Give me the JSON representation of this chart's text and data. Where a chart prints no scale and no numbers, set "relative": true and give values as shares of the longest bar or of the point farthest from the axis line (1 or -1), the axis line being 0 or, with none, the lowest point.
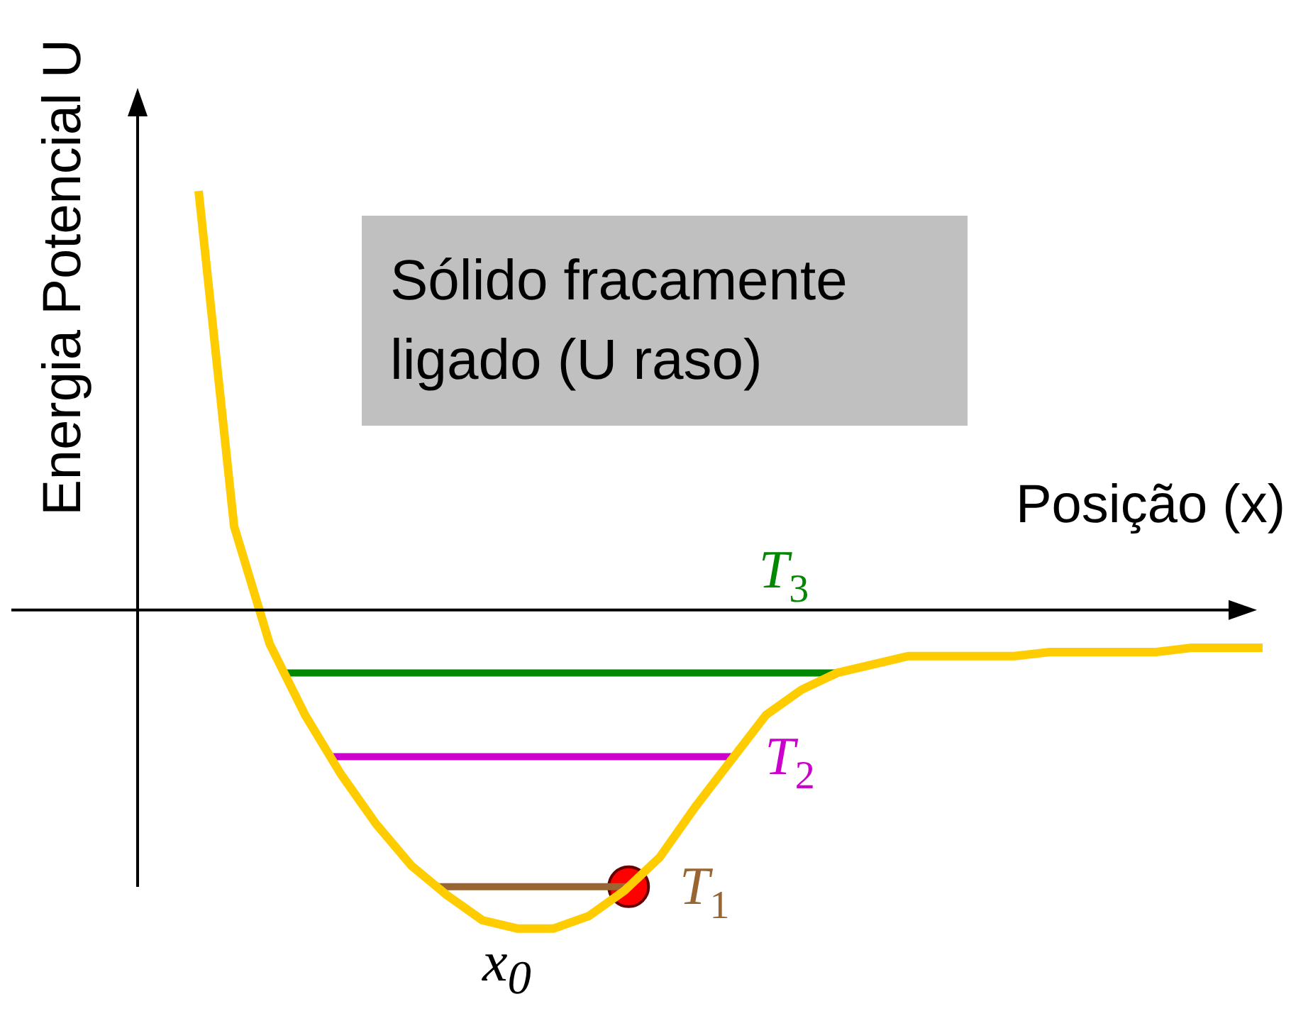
{
  "chart_data": {
    "type": "line",
    "relative": true,
    "xlabel": "Posição (x)",
    "ylabel": "Energia Potencial U",
    "legend": false,
    "categories": [
      null,
      null,
      null,
      null,
      null,
      null,
      null,
      null,
      null,
      null,
      null,
      null,
      null,
      null,
      null,
      null,
      null,
      null,
      null,
      null,
      null,
      null,
      null,
      null,
      null,
      null,
      null,
      null,
      null,
      null,
      null
    ],
    "series": [
      {
        "color": "#ffcc00",
        "values": [
          1.0,
          0.2,
          -0.08,
          -0.25,
          -0.39,
          -0.51,
          -0.61,
          -0.68,
          -0.74,
          -0.76,
          -0.76,
          -0.73,
          -0.67,
          -0.59,
          -0.47,
          -0.36,
          -0.25,
          -0.19,
          -0.15,
          -0.13,
          -0.11,
          -0.11,
          -0.11,
          -0.11,
          -0.1,
          -0.1,
          -0.1,
          -0.1,
          -0.09,
          -0.09,
          -0.09
        ]
      }
    ],
    "ref_lines": [
      {
        "axis": "y",
        "value": -0.15,
        "label": "T$_{3}$",
        "color": "#008800"
      },
      {
        "axis": "y",
        "value": -0.35,
        "label": "T$_{2}$",
        "color": "#cc00cc"
      },
      {
        "axis": "y",
        "value": -0.66,
        "label": "T$_{1}$",
        "color": "#996633"
      }
    ],
    "annotations": [
      "Sólido fracamente ligado (U raso)",
      "x$_{0}$"
    ]
  }
}
